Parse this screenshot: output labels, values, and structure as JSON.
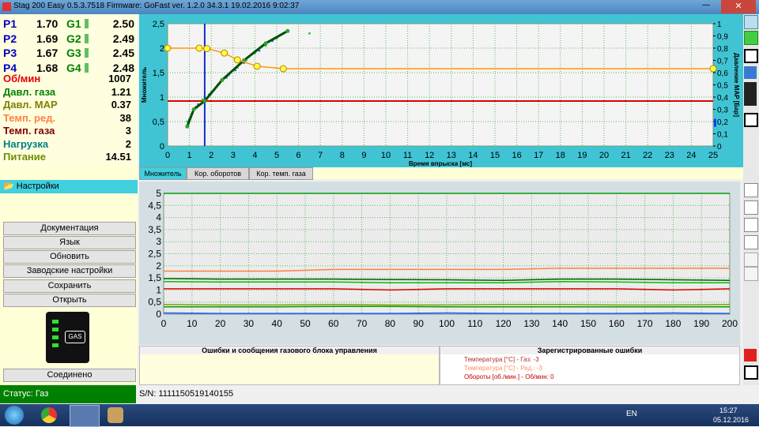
{
  "window": {
    "title": "Stag 200 Easy 0.5.3.7518 Firmware: GoFast  ver. 1.2.0  34.3.1  19.02.2016 9:02:37"
  },
  "readings": {
    "injectors": [
      {
        "name": "P1",
        "value": "1.70",
        "g_name": "G1",
        "g_value": "2.50"
      },
      {
        "name": "P2",
        "value": "1.69",
        "g_name": "G2",
        "g_value": "2.49"
      },
      {
        "name": "P3",
        "value": "1.67",
        "g_name": "G3",
        "g_value": "2.45"
      },
      {
        "name": "P4",
        "value": "1.68",
        "g_name": "G4",
        "g_value": "2.48"
      }
    ],
    "params": [
      {
        "label": "Об/мин",
        "value": "1007",
        "color": "#e00000"
      },
      {
        "label": "Давл. газа",
        "value": "1.21",
        "color": "#008000"
      },
      {
        "label": "Давл. MAP",
        "value": "0.37",
        "color": "#808000"
      },
      {
        "label": "Темп. ред.",
        "value": "38",
        "color": "#ff8040"
      },
      {
        "label": "Темп. газа",
        "value": "3",
        "color": "#800000"
      },
      {
        "label": "Нагрузка",
        "value": "2",
        "color": "#008080"
      },
      {
        "label": "Питание",
        "value": "14.51",
        "color": "#6b8e00"
      }
    ]
  },
  "top_chart": {
    "type": "scatter",
    "xlabel": "Время впрыска [мс]",
    "ylabel": "Множитель",
    "y2label": "Давление MAP [Бар]",
    "xlim": [
      0,
      25
    ],
    "xticks": [
      0,
      1,
      2,
      3,
      4,
      5,
      6,
      7,
      8,
      9,
      10,
      11,
      12,
      13,
      14,
      15,
      16,
      17,
      18,
      19,
      20,
      21,
      22,
      23,
      24,
      25
    ],
    "ylim": [
      0,
      2.5
    ],
    "yticks": [
      0,
      {
        "value": 0.5,
        "label": "0,5"
      },
      1,
      {
        "value": 1.5,
        "label": "1,5"
      },
      2,
      {
        "value": 2.5,
        "label": "2,5"
      }
    ],
    "y2lim": [
      0,
      1
    ],
    "y2ticks": [
      0,
      {
        "value": 0.1,
        "label": "0,1"
      },
      {
        "value": 0.2,
        "label": "0,2"
      },
      {
        "value": 0.3,
        "label": "0,3"
      },
      {
        "value": 0.4,
        "label": "0,4"
      },
      {
        "value": 0.5,
        "label": "0,5"
      },
      {
        "value": 0.6,
        "label": "0,6"
      },
      {
        "value": 0.7,
        "label": "0,7"
      },
      {
        "value": 0.8,
        "label": "0,8"
      },
      {
        "value": 0.9,
        "label": "0,9"
      },
      1
    ],
    "grid": true,
    "multiplier_curve": {
      "color": "#ff9900",
      "x": [
        0,
        1.45,
        1.8,
        2.6,
        3.2,
        4.1,
        5.3,
        25
      ],
      "values": [
        2.0,
        2.0,
        1.99,
        1.9,
        1.76,
        1.63,
        1.58,
        1.58
      ]
    },
    "samples": [
      {
        "color": "#33cc33",
        "x": [
          0.9,
          1.1,
          1.3,
          1.6,
          2.0,
          2.4,
          2.8,
          3.2,
          3.6,
          4.0,
          4.5,
          5.0,
          5.5,
          6.5
        ],
        "values": [
          0.5,
          0.65,
          0.8,
          0.95,
          1.1,
          1.3,
          1.45,
          1.6,
          1.75,
          1.9,
          2.05,
          2.2,
          2.35,
          2.3
        ]
      },
      {
        "color": "#3366ff",
        "x": [
          1.0,
          1.4,
          1.9,
          2.3,
          2.7,
          3.1,
          3.5,
          4.2,
          4.8,
          5.3
        ],
        "values": [
          0.55,
          0.85,
          1.05,
          1.25,
          1.4,
          1.55,
          1.7,
          1.95,
          2.15,
          2.3
        ]
      }
    ],
    "fit": {
      "color": "#005000",
      "x": [
        0.9,
        1.2,
        1.7,
        2.5,
        3.5,
        4.5,
        5.5
      ],
      "values": [
        0.4,
        0.75,
        0.92,
        1.35,
        1.75,
        2.1,
        2.35
      ]
    },
    "cursor_x": 1.7,
    "limit_y": 0.92,
    "map_value": 0.19
  },
  "tabs": [
    "Множитель",
    "Кор. оборотов",
    "Кор. темп. газа"
  ],
  "bottom_chart": {
    "type": "line",
    "xlim": [
      0,
      200
    ],
    "xticks": [
      0,
      10,
      20,
      30,
      40,
      50,
      60,
      70,
      80,
      90,
      100,
      110,
      120,
      130,
      140,
      150,
      160,
      170,
      180,
      190,
      200
    ],
    "ylim": [
      0,
      5
    ],
    "yticks": [
      0,
      {
        "value": 0.5,
        "label": "0,5"
      },
      1,
      {
        "value": 1.5,
        "label": "1,5"
      },
      2,
      {
        "value": 2.5,
        "label": "2,5"
      },
      3,
      {
        "value": 3.5,
        "label": "3,5"
      },
      4,
      {
        "value": 4.5,
        "label": "4,5"
      },
      5
    ],
    "grid": true,
    "x": [
      0,
      20,
      40,
      60,
      80,
      100,
      120,
      140,
      160,
      180,
      200
    ],
    "series": [
      {
        "color": "#00a000",
        "values": [
          5,
          5,
          5,
          5,
          5,
          5,
          5,
          5,
          5,
          5,
          5
        ]
      },
      {
        "color": "#ff8040",
        "values": [
          1.78,
          1.78,
          1.78,
          1.85,
          1.85,
          1.85,
          1.85,
          1.9,
          1.9,
          1.9,
          1.9
        ]
      },
      {
        "color": "#006000",
        "values": [
          1.47,
          1.45,
          1.45,
          1.45,
          1.43,
          1.42,
          1.4,
          1.45,
          1.45,
          1.42,
          1.4
        ]
      },
      {
        "color": "#00c000",
        "values": [
          1.35,
          1.33,
          1.33,
          1.33,
          1.3,
          1.3,
          1.3,
          1.35,
          1.33,
          1.3,
          1.3
        ]
      },
      {
        "color": "#e00000",
        "values": [
          1.05,
          1.05,
          1.05,
          1.05,
          1.0,
          1.05,
          1.05,
          1.05,
          1.05,
          1.0,
          1.05
        ]
      },
      {
        "color": "#80a000",
        "values": [
          0.4,
          0.38,
          0.38,
          0.4,
          0.38,
          0.38,
          0.4,
          0.4,
          0.38,
          0.38,
          0.4
        ]
      },
      {
        "color": "#00a000",
        "values": [
          0.3,
          0.3,
          0.3,
          0.32,
          0.32,
          0.3,
          0.3,
          0.3,
          0.3,
          0.3,
          0.3
        ]
      },
      {
        "color": "#2060ff",
        "values": [
          0.05,
          0.03,
          0.03,
          0.03,
          0.03,
          0.05,
          0.03,
          0.03,
          0.03,
          0.05,
          0.03
        ]
      }
    ]
  },
  "menu": {
    "settings": "Настройки",
    "buttons": [
      "Документация",
      "Язык",
      "Обновить",
      "Заводские настройки",
      "Сохранить",
      "Открыть"
    ],
    "connection": "Соединено",
    "gas_icon": "GAS"
  },
  "errors": {
    "title": "Ошибки и сообщения газового блока управления",
    "registered_title": "Зарегистрированные ошибки",
    "registered": [
      {
        "text": "Температура [°C] - Газ: -3",
        "color": "#b03030"
      },
      {
        "text": "Температура [°C] - Ред.: -3",
        "color": "#ff9060"
      },
      {
        "text": "Обороты [об./мин.] - Об/мин: 0",
        "color": "#c00000"
      }
    ]
  },
  "status": {
    "state": "Статус: Газ",
    "serial": "S/N: 1111150519140155"
  },
  "taskbar": {
    "lang": "EN",
    "time": "15:27",
    "date": "05.12.2016"
  }
}
